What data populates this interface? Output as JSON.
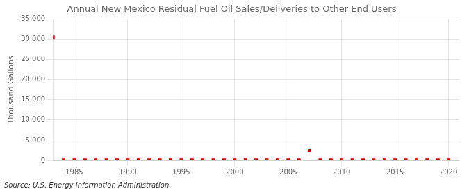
{
  "chart_data": {
    "type": "scatter",
    "title": "Annual New Mexico Residual Fuel Oil Sales/Deliveries to Other End Users",
    "y_label": "Thousand Gallons",
    "annotations": [
      "Source: U.S. Energy Information Administration"
    ],
    "x": [
      1983,
      1984,
      1985,
      1986,
      1987,
      1988,
      1989,
      1990,
      1991,
      1992,
      1993,
      1994,
      1995,
      1996,
      1997,
      1998,
      1999,
      2000,
      2001,
      2002,
      2003,
      2004,
      2005,
      2006,
      2007,
      2008,
      2009,
      2010,
      2011,
      2012,
      2013,
      2014,
      2015,
      2016,
      2017,
      2018,
      2019,
      2020
    ],
    "values": [
      30500,
      50,
      50,
      50,
      50,
      50,
      50,
      50,
      50,
      50,
      50,
      50,
      50,
      50,
      50,
      50,
      50,
      50,
      50,
      50,
      50,
      50,
      50,
      50,
      2500,
      50,
      50,
      50,
      50,
      50,
      50,
      50,
      50,
      50,
      50,
      50,
      50,
      50
    ],
    "color": "#cc0000",
    "marker": "square",
    "xlim": [
      1983.0,
      2021.0
    ],
    "xticks": [
      1985,
      1990,
      1995,
      2000,
      2005,
      2010,
      2015,
      2020
    ],
    "ylim": [
      0,
      35000
    ],
    "yticks": [
      0,
      {
        "value": 5000,
        "label": "5,000"
      },
      {
        "value": 10000,
        "label": "10,000"
      },
      {
        "value": 15000,
        "label": "15,000"
      },
      {
        "value": 20000,
        "label": "20,000"
      },
      {
        "value": 25000,
        "label": "25,000"
      },
      {
        "value": 30000,
        "label": "30,000"
      },
      {
        "value": 35000,
        "label": "35,000"
      }
    ],
    "grid": true
  }
}
